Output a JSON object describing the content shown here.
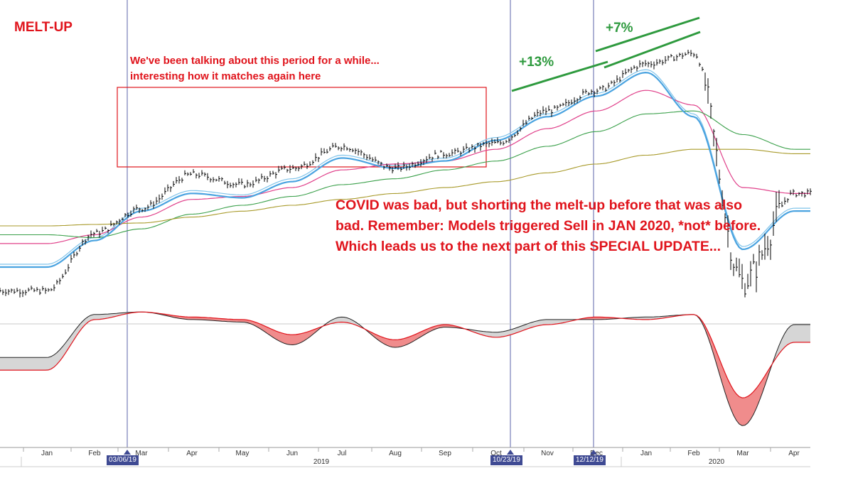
{
  "title": "MELT-UP",
  "annotation_box": "We've been talking about this period for a while... interesting how it matches again here",
  "pct_13": "+13%",
  "pct_7": "+7%",
  "main_note": "COVID was bad, but shorting the melt-up before that was also bad. Remember: Models triggered Sell in JAN 2020, *not* before. Which leads us to the next part of this SPECIAL UPDATE...",
  "date_markers": [
    "03/06/19",
    "10/23/19",
    "12/12/19"
  ],
  "colors": {
    "text_red": "#e0141c",
    "green_text": "#2e9a3e",
    "price_bars": "#000000",
    "ma_fast": "#4aa3e0",
    "ma_slow": "#7fc3ea",
    "ma_magenta": "#e0408a",
    "ma_green": "#3aa04a",
    "ma_olive": "#a89a2a",
    "marker_line": "#5b63a8",
    "osc_red": "#e0141c",
    "osc_fill_red": "#f08c8c",
    "osc_fill_gray": "#d6d6d6"
  },
  "chart_data": {
    "type": "line",
    "x": [
      "Jan",
      "Feb",
      "Mar",
      "Apr",
      "May",
      "Jun",
      "Jul",
      "Aug",
      "Sep",
      "Oct",
      "Nov",
      "Dec",
      "Jan",
      "Feb",
      "Mar",
      "Apr"
    ],
    "x_years": [
      "2019",
      "2020"
    ],
    "x_month_years": [
      2019,
      2019,
      2019,
      2019,
      2019,
      2019,
      2019,
      2019,
      2019,
      2019,
      2019,
      2019,
      2020,
      2020,
      2020,
      2020
    ],
    "y_axis_shown": false,
    "series": [
      {
        "values": [
          2510,
          2705,
          2790,
          2905,
          2870,
          2925,
          3000,
          2925,
          2975,
          3010,
          3120,
          3190,
          3280,
          3315,
          2540,
          2840
        ]
      },
      {
        "values": [
          2600,
          2690,
          2790,
          2850,
          2835,
          2890,
          2970,
          2935,
          2960,
          3030,
          3110,
          3180,
          3260,
          3110,
          2660,
          2790
        ]
      },
      {
        "values": [
          2670,
          2700,
          2760,
          2820,
          2830,
          2860,
          2920,
          2940,
          2950,
          2990,
          3060,
          3120,
          3190,
          3140,
          2860,
          2840
        ]
      },
      {
        "values": [
          2700,
          2690,
          2720,
          2770,
          2800,
          2830,
          2870,
          2890,
          2920,
          2950,
          3000,
          3050,
          3110,
          3120,
          3040,
          2990
        ]
      },
      {
        "values": [
          2730,
          2735,
          2740,
          2760,
          2780,
          2800,
          2820,
          2840,
          2860,
          2880,
          2910,
          2940,
          2970,
          2990,
          2990,
          2975
        ]
      }
    ],
    "oscillator": {
      "lines": [
        {
          "values": [
            -0.3,
            0.55,
            0.6,
            0.45,
            0.4,
            -0.05,
            0.5,
            -0.1,
            0.3,
            0.2,
            0.45,
            0.45,
            0.5,
            0.55,
            -1.65,
            0.35
          ]
        },
        {
          "values": [
            -0.55,
            0.45,
            0.6,
            0.5,
            0.45,
            0.15,
            0.4,
            0.05,
            0.35,
            0.1,
            0.35,
            0.5,
            0.45,
            0.55,
            -1.1,
            0.0
          ]
        }
      ],
      "zero_line": true
    },
    "vertical_markers": [
      "03/06/19",
      "10/23/19",
      "12/12/19"
    ],
    "trend_annotations": [
      "+13%",
      "+7%"
    ],
    "grid": false
  }
}
